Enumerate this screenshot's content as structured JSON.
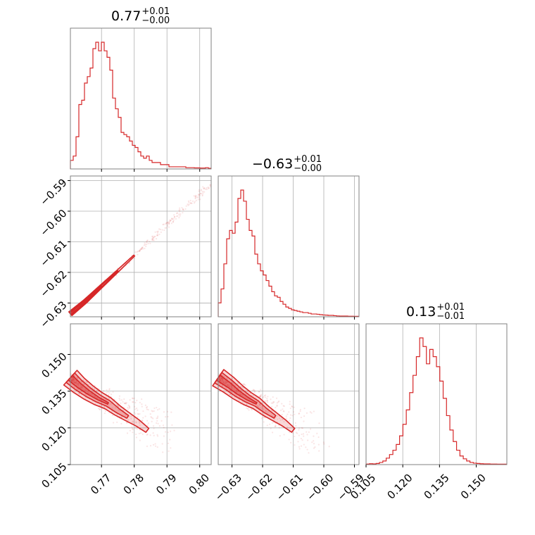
{
  "chart_data": {
    "type": "corner",
    "color": "#d62728",
    "params": [
      {
        "title_value": "0.77",
        "title_plus": "+0.01",
        "title_minus": "−0.00",
        "range": [
          0.7605,
          0.8035
        ],
        "ticks": [
          0.77,
          0.78,
          0.79,
          0.8
        ],
        "tick_labels": [
          "0.77",
          "0.78",
          "0.79",
          "0.80"
        ]
      },
      {
        "title_value": "−0.63",
        "title_plus": "+0.01",
        "title_minus": "−0.00",
        "range": [
          -0.6345,
          -0.5885
        ],
        "ticks": [
          -0.63,
          -0.62,
          -0.61,
          -0.6,
          -0.59
        ],
        "tick_labels": [
          "−0.63",
          "−0.62",
          "−0.61",
          "−0.60",
          "−0.59"
        ]
      },
      {
        "title_value": "0.13",
        "title_plus": "+0.01",
        "title_minus": "−0.01",
        "range": [
          0.105,
          0.1625
        ],
        "ticks": [
          0.105,
          0.12,
          0.135,
          0.15
        ],
        "tick_labels": [
          "0.105",
          "0.120",
          "0.135",
          "0.150"
        ]
      }
    ],
    "grid": true,
    "histograms": [
      {
        "param": 0,
        "counts": [
          4,
          6,
          15,
          30,
          32,
          40,
          43,
          47,
          56,
          59,
          55,
          59,
          55,
          52,
          46,
          33,
          28,
          24,
          17,
          16,
          15,
          13,
          11,
          10,
          8,
          6,
          5,
          6,
          4,
          3,
          3,
          3,
          2,
          2,
          2,
          1,
          1,
          1,
          1,
          1,
          1,
          0.6,
          0.6,
          0.6,
          0.5,
          0.5,
          0.4,
          0.4,
          0.6,
          0.3
        ]
      },
      {
        "param": 1,
        "counts": [
          10,
          20,
          38,
          56,
          62,
          60,
          68,
          85,
          91,
          83,
          70,
          62,
          58,
          45,
          38,
          33,
          30,
          26,
          22,
          18,
          15,
          14,
          11,
          9,
          7,
          6,
          5,
          4.5,
          4,
          3.5,
          3,
          3,
          2.5,
          2,
          2,
          1.8,
          1.5,
          1.3,
          1.2,
          1,
          1,
          0.8,
          0.6,
          0.5,
          0.5,
          0.5,
          0.4,
          0.4,
          0.3,
          0.3
        ]
      },
      {
        "param": 2,
        "counts": [
          0.4,
          0.6,
          0.5,
          0.8,
          1.5,
          2.5,
          4.5,
          7,
          10,
          14,
          20,
          28,
          38,
          50,
          62,
          75,
          88,
          82,
          70,
          80,
          75,
          68,
          58,
          46,
          34,
          24,
          16,
          10,
          6,
          4,
          2.5,
          1.5,
          1,
          0.8,
          0.6,
          0.5,
          0.5,
          0.4,
          0.4,
          0.3,
          0.3,
          0.3
        ]
      }
    ],
    "joint_2d": [
      {
        "x_param": 0,
        "y_param": 1,
        "ridge": [
          [
            0.7605,
            -0.6335
          ],
          [
            0.765,
            -0.6295
          ],
          [
            0.77,
            -0.6245
          ],
          [
            0.775,
            -0.6195
          ],
          [
            0.78,
            -0.6145
          ],
          [
            0.785,
            -0.6095
          ],
          [
            0.79,
            -0.6045
          ],
          [
            0.795,
            -0.5995
          ],
          [
            0.8,
            -0.5945
          ],
          [
            0.803,
            -0.591
          ]
        ]
      },
      {
        "x_param": 0,
        "y_param": 2,
        "ridge": [
          [
            0.7605,
            0.1405
          ],
          [
            0.763,
            0.1375
          ],
          [
            0.766,
            0.1345
          ],
          [
            0.769,
            0.132
          ],
          [
            0.772,
            0.13
          ],
          [
            0.775,
            0.127
          ],
          [
            0.778,
            0.1245
          ],
          [
            0.781,
            0.122
          ],
          [
            0.784,
            0.119
          ],
          [
            0.787,
            0.1165
          ],
          [
            0.79,
            0.115
          ]
        ]
      },
      {
        "x_param": 1,
        "y_param": 2,
        "ridge": [
          [
            -0.6345,
            0.1405
          ],
          [
            -0.631,
            0.1375
          ],
          [
            -0.628,
            0.1345
          ],
          [
            -0.625,
            0.132
          ],
          [
            -0.622,
            0.13
          ],
          [
            -0.619,
            0.127
          ],
          [
            -0.616,
            0.1245
          ],
          [
            -0.613,
            0.122
          ],
          [
            -0.61,
            0.119
          ],
          [
            -0.607,
            0.1165
          ],
          [
            -0.603,
            0.115
          ]
        ]
      }
    ]
  }
}
